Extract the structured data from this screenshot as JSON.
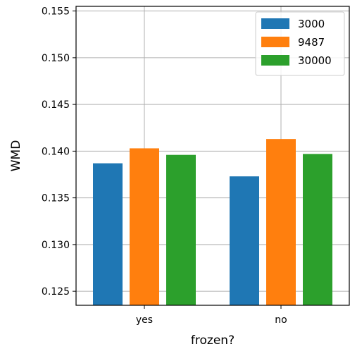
{
  "chart_data": {
    "type": "bar",
    "categories": [
      "yes",
      "no"
    ],
    "series": [
      {
        "name": "3000",
        "values": [
          0.1387,
          0.1373
        ],
        "color": "#1f77b4"
      },
      {
        "name": "9487",
        "values": [
          0.1403,
          0.1413
        ],
        "color": "#ff7f0e"
      },
      {
        "name": "30000",
        "values": [
          0.1396,
          0.1397
        ],
        "color": "#2ca02c"
      }
    ],
    "title": "",
    "xlabel": "frozen?",
    "ylabel": "WMD",
    "ylim": [
      0.1235,
      0.1555
    ],
    "yticks": [
      "0.125",
      "0.130",
      "0.135",
      "0.140",
      "0.145",
      "0.150",
      "0.155"
    ],
    "grid": true,
    "legend_position": "top-right"
  }
}
